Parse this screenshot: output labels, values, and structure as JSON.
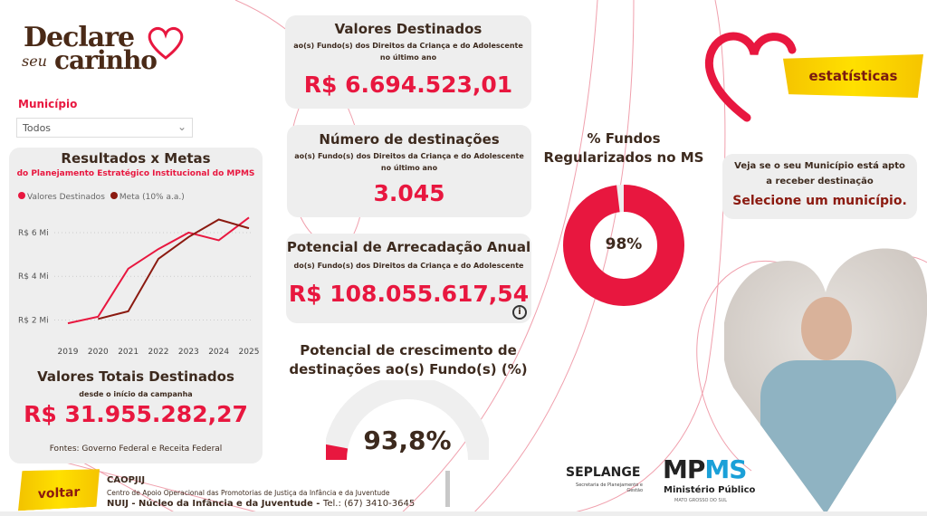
{
  "logo": {
    "line1": "Declare",
    "seu": "seu",
    "line2": "carinho"
  },
  "filter": {
    "label": "Município",
    "value": "Todos"
  },
  "results": {
    "title": "Resultados x Metas",
    "subtitle": "do Planejamento Estratégico Institucional do MPMS",
    "totals_title": "Valores Totais Destinados",
    "totals_sub": "desde o início da campanha",
    "totals_value": "R$ 31.955.282,27",
    "sources": "Fontes: Governo Federal e Receita Federal"
  },
  "chart_data": {
    "type": "line",
    "categories": [
      "2019",
      "2020",
      "2021",
      "2022",
      "2023",
      "2024",
      "2025"
    ],
    "series": [
      {
        "name": "Valores Destinados",
        "color": "#e8173f",
        "values": [
          1.85,
          2.15,
          4.35,
          5.25,
          6.0,
          5.65,
          6.69
        ]
      },
      {
        "name": "Meta (10% a.a.)",
        "color": "#8b1a10",
        "values": [
          null,
          2.05,
          2.4,
          4.8,
          5.8,
          6.6,
          6.2
        ]
      }
    ],
    "yticks": [
      "R$ 2 Mi",
      "R$ 4 Mi",
      "R$ 6 Mi"
    ],
    "ytick_values": [
      2,
      4,
      6
    ],
    "ylim": [
      1.4,
      7.2
    ],
    "grid": true,
    "legend": "top-left"
  },
  "kpi1": {
    "title": "Valores Destinados",
    "sub1": "ao(s) Fundo(s) dos Direitos da Criança e do Adolescente",
    "sub2": "no último ano",
    "value": "R$ 6.694.523,01"
  },
  "kpi2": {
    "title": "Número de destinações",
    "sub1": "ao(s) Fundo(s) dos Direitos da Criança e do Adolescente",
    "sub2": "no último ano",
    "value": "3.045"
  },
  "kpi3": {
    "title": "Potencial de Arrecadação Anual",
    "sub1": "do(s) Fundo(s) dos Direitos da Criança e do Adolescente",
    "value": "R$ 108.055.617,54",
    "info": "i"
  },
  "growth": {
    "title1": "Potencial de crescimento de",
    "title2": "destinações ao(s) Fundo(s) (%)",
    "value": "93,8%",
    "fill_fraction": 0.06
  },
  "funds": {
    "title1": "% Fundos",
    "title2": "Regularizados no MS",
    "value": "98%",
    "fraction": 0.98
  },
  "banner": "estatísticas",
  "apt": {
    "line1": "Veja se o seu Município está apto",
    "line2": "a receber destinação",
    "cta": "Selecione um município."
  },
  "footer": {
    "back": "voltar",
    "org": "CAOPJIJ",
    "org_full": "Centro de Apoio Operacional das Promotorias de Justiça da Infância e da Juventude",
    "nuij": "NUIJ - Núcleo da Infância e da Juventude - ",
    "tel": "Tel.: (67) 3410-3645"
  },
  "logos": {
    "seplange": "SEPLANGE",
    "seplange_sub": "Secretaria de Planejamento e Gestão",
    "mp": "MP",
    "ms": "MS",
    "mp_sub": "Ministério Público",
    "mp_sub2": "MATO GROSSO DO SUL"
  }
}
